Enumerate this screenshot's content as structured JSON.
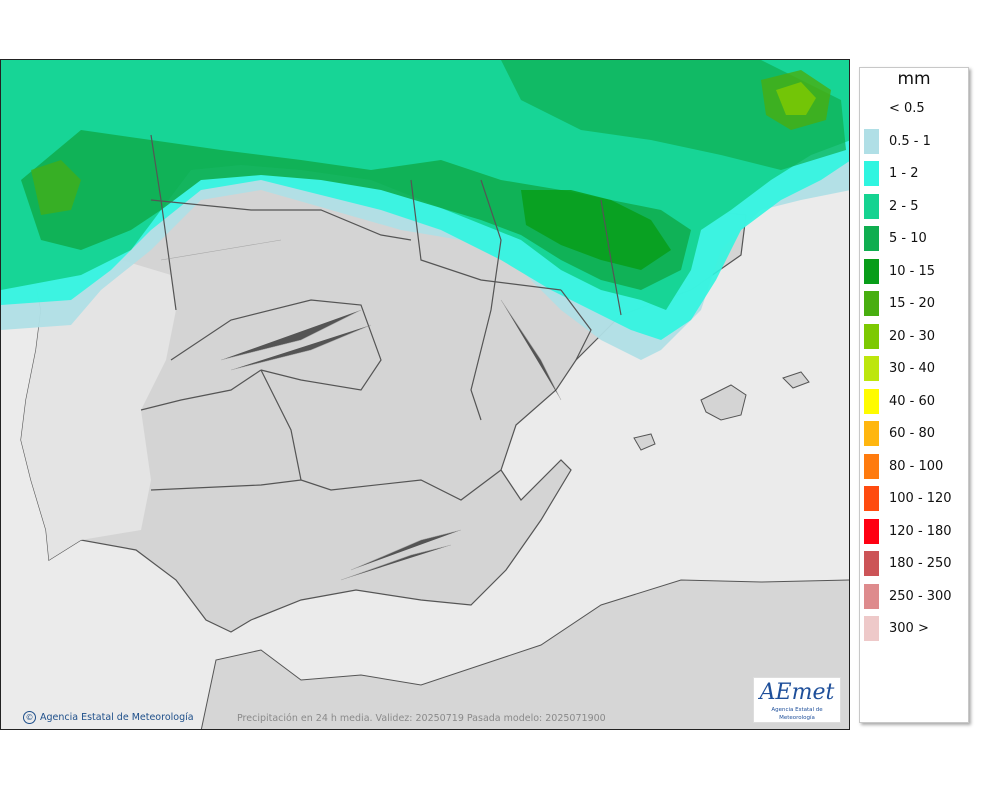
{
  "legend": {
    "title": "mm",
    "items": [
      {
        "label": "< 0.5",
        "color": ""
      },
      {
        "label": "0.5 - 1",
        "color": "#b0dfe6"
      },
      {
        "label": "1 - 2",
        "color": "#2ff5e0"
      },
      {
        "label": "2 - 5",
        "color": "#15d391"
      },
      {
        "label": "5 - 10",
        "color": "#0fae50"
      },
      {
        "label": "10 - 15",
        "color": "#089d19"
      },
      {
        "label": "15 - 20",
        "color": "#48ae10"
      },
      {
        "label": "20 - 30",
        "color": "#7dc902"
      },
      {
        "label": "30 - 40",
        "color": "#bde60d"
      },
      {
        "label": "40 - 60",
        "color": "#fffc00"
      },
      {
        "label": "60 - 80",
        "color": "#ffb60f"
      },
      {
        "label": "80 - 100",
        "color": "#ff7b0e"
      },
      {
        "label": "100 - 120",
        "color": "#ff4b0f"
      },
      {
        "label": "120 - 180",
        "color": "#ff0012"
      },
      {
        "label": "180 - 250",
        "color": "#cc5457"
      },
      {
        "label": "250 - 300",
        "color": "#de8b8d"
      },
      {
        "label": "300 >",
        "color": "#eec9c9"
      }
    ]
  },
  "footer": {
    "credit": "Agencia Estatal de Meteorología",
    "caption": "Precipitación en 24 h media. Validez: 20250719 Pasada modelo: 2025071900"
  },
  "logo": {
    "word": "AEmet",
    "subtitle": "Agencia Estatal de Meteorología"
  },
  "colors": {
    "sea": "#ebebeb",
    "land": "#d4d4d4",
    "border": "#555555"
  }
}
